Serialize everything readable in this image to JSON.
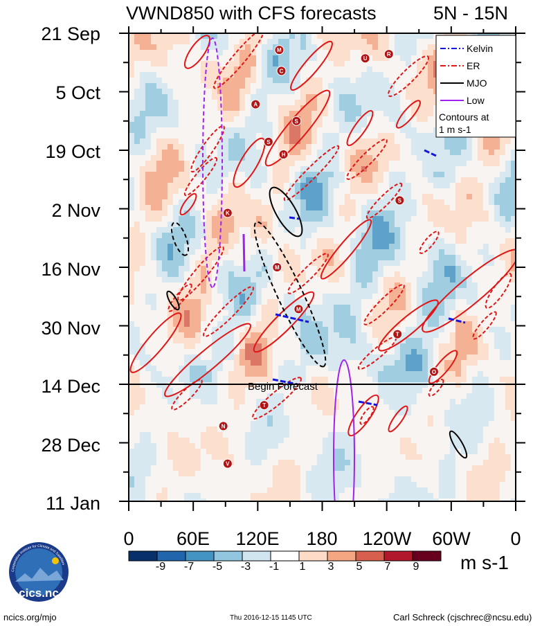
{
  "chart_data": {
    "type": "heatmap",
    "title": "VWND850 with CFS forecasts",
    "region": "5N - 15N",
    "ylabel": "",
    "xlabel": "",
    "y_tick_labels": [
      "21 Sep",
      "5 Oct",
      "19 Oct",
      "2 Nov",
      "16 Nov",
      "30 Nov",
      "14 Dec",
      "28 Dec",
      "11 Jan"
    ],
    "x_tick_labels": [
      "0",
      "60E",
      "120E",
      "180",
      "120W",
      "60W",
      "0"
    ],
    "x_range_deg_east": [
      0,
      360
    ],
    "forecast_start": "14 Dec",
    "forecast_label": "Begin Forecast",
    "legend": {
      "position": "top-right",
      "entries": [
        {
          "name": "Kelvin",
          "color": "#1515e0",
          "style": "dash-dot"
        },
        {
          "name": "ER",
          "color": "#e01515",
          "style": "dash-dot"
        },
        {
          "name": "MJO",
          "color": "#000000",
          "style": "solid"
        },
        {
          "name": "Low",
          "color": "#a020f0",
          "style": "solid"
        }
      ],
      "note_line1": "Contours at",
      "note_line2": "1 m s-1"
    },
    "colorbar": {
      "levels": [
        "-9",
        "-7",
        "-5",
        "-3",
        "-1",
        "1",
        "3",
        "5",
        "7",
        "9"
      ],
      "colors": [
        "#08306b",
        "#2166ac",
        "#4393c3",
        "#92c5de",
        "#d1e5f0",
        "#ffffff",
        "#fddbc7",
        "#f4a582",
        "#d6604d",
        "#b2182b",
        "#67001f"
      ],
      "units": "m s-1"
    },
    "storm_markers": [
      {
        "label": "M",
        "lon_deg": 140,
        "day": 4
      },
      {
        "label": "C",
        "lon_deg": 142,
        "day": 9
      },
      {
        "label": "A",
        "lon_deg": 118,
        "day": 17
      },
      {
        "label": "S",
        "lon_deg": 156,
        "day": 21
      },
      {
        "label": "S",
        "lon_deg": 130,
        "day": 26
      },
      {
        "label": "H",
        "lon_deg": 144,
        "day": 29
      },
      {
        "label": "K",
        "lon_deg": 92,
        "day": 43
      },
      {
        "label": "M",
        "lon_deg": 138,
        "day": 56
      },
      {
        "label": "M",
        "lon_deg": 158,
        "day": 66
      },
      {
        "label": "T",
        "lon_deg": 250,
        "day": 72
      },
      {
        "label": "T",
        "lon_deg": 126,
        "day": 89
      },
      {
        "label": "N",
        "lon_deg": 88,
        "day": 94
      },
      {
        "label": "V",
        "lon_deg": 92,
        "day": 103
      },
      {
        "label": "U",
        "lon_deg": 220,
        "day": 6
      },
      {
        "label": "R",
        "lon_deg": 242,
        "day": 5
      },
      {
        "label": "S",
        "lon_deg": 252,
        "day": 40
      },
      {
        "label": "O",
        "lon_deg": 284,
        "day": 81
      }
    ]
  },
  "footer": {
    "left": "ncics.org/mjo",
    "middle": "Thu 2016-12-15 1145 UTC",
    "right": "Carl Schreck (cjschrec@ncsu.edu)",
    "logo_text": "cics.nc",
    "logo_arc_text": "Cooperative Institute for Climate and Satellites"
  }
}
